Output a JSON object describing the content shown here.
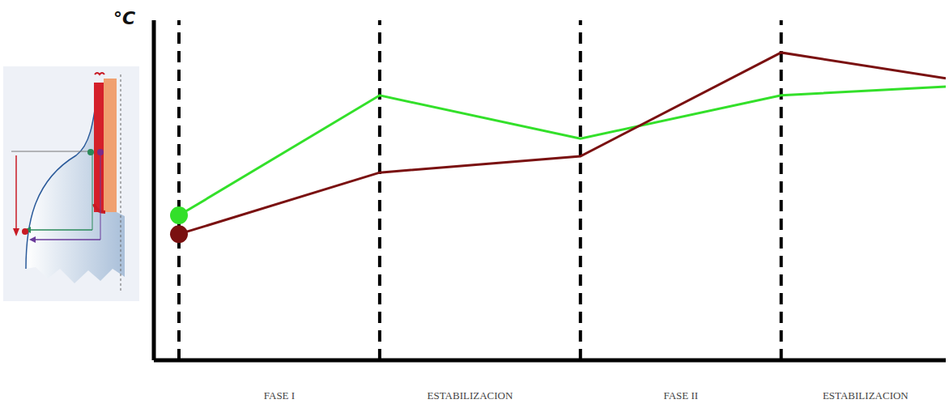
{
  "chart_data": {
    "type": "line",
    "y_label": "°C",
    "x": [
      0,
      1,
      2,
      3,
      3.82
    ],
    "series": [
      {
        "color": "#33e02a",
        "values": [
          42.6,
          77.9,
          65.2,
          77.9,
          80.5
        ],
        "marker": "first"
      },
      {
        "color": "#7a1010",
        "values": [
          37.1,
          55.2,
          60.0,
          90.5,
          82.9
        ],
        "marker": "first"
      }
    ],
    "xlim": [
      -0.125,
      3.82
    ],
    "xticks": [
      {
        "value": 0.5,
        "label": "FASE I"
      },
      {
        "value": 1.45,
        "label": "ESTABILIZACION"
      },
      {
        "value": 2.5,
        "label": "FASE II"
      },
      {
        "value": 3.42,
        "label": "ESTABILIZACION"
      }
    ],
    "ylim": [
      0,
      100
    ],
    "phase_boundaries": [
      0,
      1,
      2,
      3
    ],
    "tick_labels": "x",
    "grid": false
  }
}
